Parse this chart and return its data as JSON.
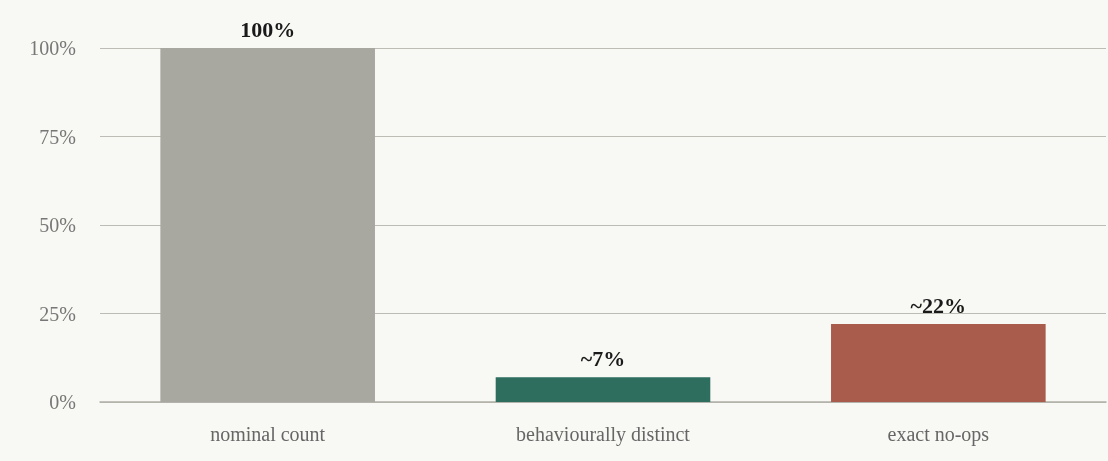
{
  "chart_data": {
    "type": "bar",
    "categories": [
      "nominal count",
      "behaviourally distinct",
      "exact no-ops"
    ],
    "values": [
      100,
      7,
      22
    ],
    "colors": [
      "#a8a8a0",
      "#2e6e5e",
      "#a95c4c"
    ],
    "value_labels": [
      "100%",
      "~7%",
      "~22%"
    ],
    "ylim": [
      0,
      100
    ],
    "yticks": [
      {
        "value": 0,
        "label": "0%"
      },
      {
        "value": 25,
        "label": "25%"
      },
      {
        "value": 50,
        "label": "50%"
      },
      {
        "value": 75,
        "label": "75%"
      },
      {
        "value": 100,
        "label": "100%"
      }
    ],
    "grid": "y"
  }
}
